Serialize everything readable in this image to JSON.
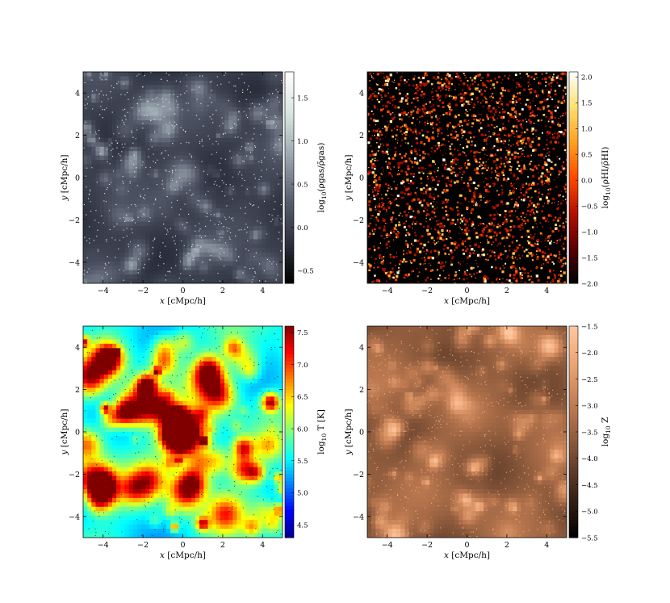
{
  "chart_data": [
    {
      "type": "heatmap",
      "panel": "top-left",
      "xlabel": "x [cMpc/h]",
      "ylabel": "y [cMpc/h]",
      "xlim": [
        -5,
        5
      ],
      "ylim": [
        -5,
        5
      ],
      "xticks": [
        -4,
        -2,
        0,
        2,
        4
      ],
      "xtick_labels": [
        "−4",
        "−2",
        "0",
        "2",
        "4"
      ],
      "yticks": [
        -4,
        -2,
        0,
        2,
        4
      ],
      "ytick_labels": [
        "−4",
        "−2",
        "0",
        "2",
        "4"
      ],
      "colorbar_label": "log10(ρgas/ρ̄gas)",
      "colorbar_range": [
        -0.65,
        1.8
      ],
      "colorbar_ticks": [
        -0.5,
        0.0,
        0.5,
        1.0,
        1.5
      ],
      "colorbar_tick_labels": [
        "−0.5",
        "0.0",
        "0.5",
        "1.0",
        "1.5"
      ],
      "colormap": [
        "#000000",
        "#2e3240",
        "#5a6070",
        "#9aa6ae",
        "#d6e6e0",
        "#ffffff"
      ],
      "style": "cosmic-web"
    },
    {
      "type": "heatmap",
      "panel": "top-right",
      "xlabel": "x [cMpc/h]",
      "ylabel": "y [cMpc/h]",
      "xlim": [
        -5,
        5
      ],
      "ylim": [
        -5,
        5
      ],
      "xticks": [
        -4,
        -2,
        0,
        2,
        4
      ],
      "xtick_labels": [
        "−4",
        "−2",
        "0",
        "2",
        "4"
      ],
      "yticks": [
        -4,
        -2,
        0,
        2,
        4
      ],
      "ytick_labels": [
        "−4",
        "−2",
        "0",
        "2",
        "4"
      ],
      "colorbar_label": "log10(ρHI/ρ̄HI)",
      "colorbar_range": [
        -2.0,
        2.1
      ],
      "colorbar_ticks": [
        -2.0,
        -1.5,
        -1.0,
        -0.5,
        0.0,
        0.5,
        1.0,
        1.5,
        2.0
      ],
      "colorbar_tick_labels": [
        "−2.0",
        "−1.5",
        "−1.0",
        "−0.5",
        "0.0",
        "0.5",
        "1.0",
        "1.5",
        "2.0"
      ],
      "colormap": [
        "#000000",
        "#5a0000",
        "#b31000",
        "#ff4a00",
        "#ffa020",
        "#ffe070",
        "#ffffff"
      ],
      "style": "speckle"
    },
    {
      "type": "heatmap",
      "panel": "bottom-left",
      "xlabel": "x [cMpc/h]",
      "ylabel": "y [cMpc/h]",
      "xlim": [
        -5,
        5
      ],
      "ylim": [
        -5,
        5
      ],
      "xticks": [
        -4,
        -2,
        0,
        2,
        4
      ],
      "xtick_labels": [
        "−4",
        "−2",
        "0",
        "2",
        "4"
      ],
      "yticks": [
        -4,
        -2,
        0,
        2,
        4
      ],
      "ytick_labels": [
        "−4",
        "−2",
        "0",
        "2",
        "4"
      ],
      "colorbar_label": "log10 T [K]",
      "colorbar_range": [
        4.3,
        7.6
      ],
      "colorbar_ticks": [
        4.5,
        5.0,
        5.5,
        6.0,
        6.5,
        7.0,
        7.5
      ],
      "colorbar_tick_labels": [
        "4.5",
        "5.0",
        "5.5",
        "6.0",
        "6.5",
        "7.0",
        "7.5"
      ],
      "colormap": [
        "#00008f",
        "#0000ff",
        "#0080ff",
        "#00ffff",
        "#80ff80",
        "#ffff00",
        "#ff8000",
        "#ff0000",
        "#800000"
      ],
      "style": "hot-blobs"
    },
    {
      "type": "heatmap",
      "panel": "bottom-right",
      "xlabel": "x [cMpc/h]",
      "ylabel": "y [cMpc/h]",
      "xlim": [
        -5,
        5
      ],
      "ylim": [
        -5,
        5
      ],
      "xticks": [
        -4,
        -2,
        0,
        2,
        4
      ],
      "xtick_labels": [
        "−4",
        "−2",
        "0",
        "2",
        "4"
      ],
      "yticks": [
        -4,
        -2,
        0,
        2,
        4
      ],
      "ytick_labels": [
        "−4",
        "−2",
        "0",
        "2",
        "4"
      ],
      "colorbar_label": "log10 Z",
      "colorbar_range": [
        -5.5,
        -1.5
      ],
      "colorbar_ticks": [
        -5.5,
        -5.0,
        -4.5,
        -4.0,
        -3.5,
        -3.0,
        -2.5,
        -2.0,
        -1.5
      ],
      "colorbar_tick_labels": [
        "−5.5",
        "−5.0",
        "−4.5",
        "−4.0",
        "−3.5",
        "−3.0",
        "−2.5",
        "−2.0",
        "−1.5"
      ],
      "colormap": [
        "#000000",
        "#3a2418",
        "#7a4e34",
        "#b8764e",
        "#e8a070",
        "#ffc79f"
      ],
      "style": "copper-web"
    }
  ]
}
